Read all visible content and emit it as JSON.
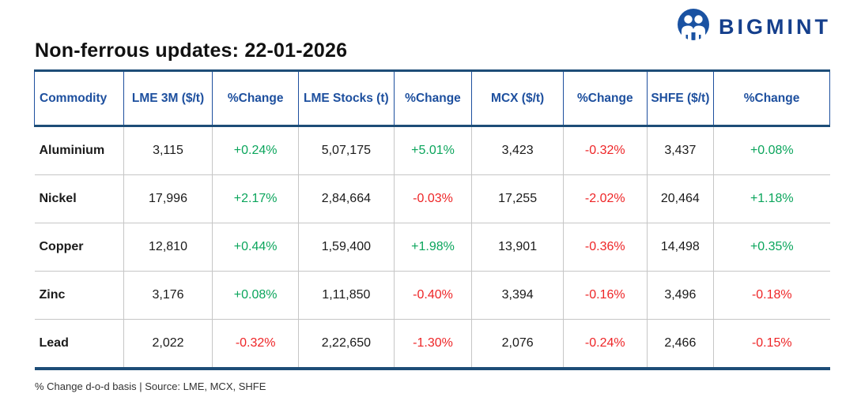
{
  "logo": {
    "text": "BIGMINT",
    "icon": "people-circle-icon",
    "brand_color": "#153f8c",
    "icon_color": "#1a52a2"
  },
  "title": "Non-ferrous updates: 22-01-2026",
  "table": {
    "columns": [
      "Commodity",
      "LME 3M ($/t)",
      "%Change",
      "LME Stocks (t)",
      "%Change",
      "MCX ($/t)",
      "%Change",
      "SHFE ($/t)",
      "%Change"
    ],
    "column_widths_pct": [
      11.2,
      11.2,
      10.8,
      12.0,
      9.8,
      11.5,
      10.5,
      8.4,
      14.6
    ],
    "rows": [
      {
        "cells": [
          {
            "text": "Aluminium",
            "kind": "commodity"
          },
          {
            "text": "3,115",
            "kind": "num"
          },
          {
            "text": "+0.24%",
            "kind": "up"
          },
          {
            "text": "5,07,175",
            "kind": "num"
          },
          {
            "text": "+5.01%",
            "kind": "up"
          },
          {
            "text": "3,423",
            "kind": "num"
          },
          {
            "text": "-0.32%",
            "kind": "down"
          },
          {
            "text": "3,437",
            "kind": "num"
          },
          {
            "text": "+0.08%",
            "kind": "up"
          }
        ]
      },
      {
        "cells": [
          {
            "text": "Nickel",
            "kind": "commodity"
          },
          {
            "text": "17,996",
            "kind": "num"
          },
          {
            "text": "+2.17%",
            "kind": "up"
          },
          {
            "text": "2,84,664",
            "kind": "num"
          },
          {
            "text": "-0.03%",
            "kind": "down"
          },
          {
            "text": "17,255",
            "kind": "num"
          },
          {
            "text": "-2.02%",
            "kind": "down"
          },
          {
            "text": "20,464",
            "kind": "num"
          },
          {
            "text": "+1.18%",
            "kind": "up"
          }
        ]
      },
      {
        "cells": [
          {
            "text": "Copper",
            "kind": "commodity"
          },
          {
            "text": "12,810",
            "kind": "num"
          },
          {
            "text": "+0.44%",
            "kind": "up"
          },
          {
            "text": "1,59,400",
            "kind": "num"
          },
          {
            "text": "+1.98%",
            "kind": "up"
          },
          {
            "text": "13,901",
            "kind": "num"
          },
          {
            "text": "-0.36%",
            "kind": "down"
          },
          {
            "text": "14,498",
            "kind": "num"
          },
          {
            "text": "+0.35%",
            "kind": "up"
          }
        ]
      },
      {
        "cells": [
          {
            "text": "Zinc",
            "kind": "commodity"
          },
          {
            "text": "3,176",
            "kind": "num"
          },
          {
            "text": "+0.08%",
            "kind": "up"
          },
          {
            "text": "1,11,850",
            "kind": "num"
          },
          {
            "text": "-0.40%",
            "kind": "down"
          },
          {
            "text": "3,394",
            "kind": "num"
          },
          {
            "text": "-0.16%",
            "kind": "down"
          },
          {
            "text": "3,496",
            "kind": "num"
          },
          {
            "text": "-0.18%",
            "kind": "down"
          }
        ]
      },
      {
        "cells": [
          {
            "text": "Lead",
            "kind": "commodity"
          },
          {
            "text": "2,022",
            "kind": "num"
          },
          {
            "text": "-0.32%",
            "kind": "down"
          },
          {
            "text": "2,22,650",
            "kind": "num"
          },
          {
            "text": "-1.30%",
            "kind": "down"
          },
          {
            "text": "2,076",
            "kind": "num"
          },
          {
            "text": "-0.24%",
            "kind": "down"
          },
          {
            "text": "2,466",
            "kind": "num"
          },
          {
            "text": "-0.15%",
            "kind": "down"
          }
        ]
      }
    ]
  },
  "footer_note": "% Change d-o-d basis | Source: LME, MCX, SHFE",
  "colors": {
    "positive": "#0ba55c",
    "negative": "#ee2527",
    "header_text": "#1d4f9e",
    "border_dark": "#1d4d77",
    "grid_light": "#c6c6c6"
  }
}
